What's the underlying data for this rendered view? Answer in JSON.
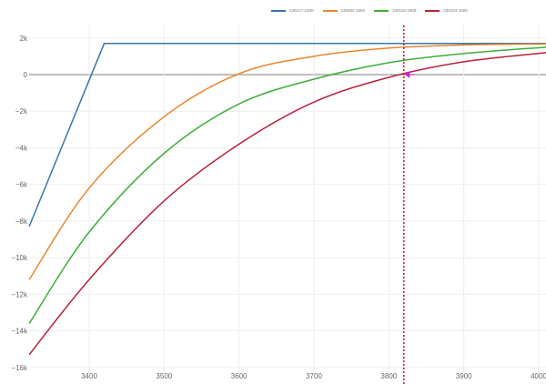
{
  "chart_data": {
    "type": "line",
    "title": "",
    "xlabel": "",
    "ylabel": "",
    "xlim": [
      3320,
      4010
    ],
    "ylim": [
      -16000,
      2000
    ],
    "x_ticks": [
      3400,
      3500,
      3600,
      3700,
      3800,
      3900,
      4000
    ],
    "y_ticks": [
      2000,
      0,
      -2000,
      -4000,
      -6000,
      -8000,
      -10000,
      -12000,
      -14000,
      -16000
    ],
    "y_tick_labels": [
      "2k",
      "0",
      "−2k",
      "−4k",
      "−6k",
      "−8k",
      "−10k",
      "−12k",
      "−14k",
      "−16k"
    ],
    "legend_position": "top",
    "grid": true,
    "series": [
      {
        "name": "230217-1600",
        "color": "#3a75a8",
        "x": [
          3320,
          3420,
          4010
        ],
        "y": [
          -8300,
          1700,
          1700
        ]
      },
      {
        "name": "230202-1600",
        "color": "#e8872b",
        "x": [
          3320,
          3400,
          3500,
          3600,
          3700,
          3800,
          3900,
          4010
        ],
        "y": [
          -11200,
          -6200,
          -2300,
          50,
          1000,
          1450,
          1620,
          1680
        ]
      },
      {
        "name": "230118-1600",
        "color": "#3fae3a",
        "x": [
          3320,
          3400,
          3500,
          3600,
          3700,
          3800,
          3900,
          4010
        ],
        "y": [
          -13600,
          -8600,
          -4300,
          -1600,
          -250,
          650,
          1150,
          1500
        ]
      },
      {
        "name": "230103-1500",
        "color": "#b8203c",
        "x": [
          3320,
          3400,
          3500,
          3600,
          3700,
          3800,
          3900,
          4010
        ],
        "y": [
          -15300,
          -11200,
          -6900,
          -3800,
          -1500,
          -150,
          700,
          1200
        ]
      }
    ],
    "annotations": [
      {
        "type": "vertical-dotted-line",
        "x": 3820,
        "color": "#cc1133"
      },
      {
        "type": "marker-arrow",
        "x": 3820,
        "y": 0,
        "color": "#cc22cc"
      }
    ]
  },
  "legend": [
    {
      "label": "230217-1600",
      "color": "#3a75a8"
    },
    {
      "label": "230202-1600",
      "color": "#e8872b"
    },
    {
      "label": "230118-1600",
      "color": "#3fae3a"
    },
    {
      "label": "230103-1500",
      "color": "#b8203c"
    }
  ]
}
